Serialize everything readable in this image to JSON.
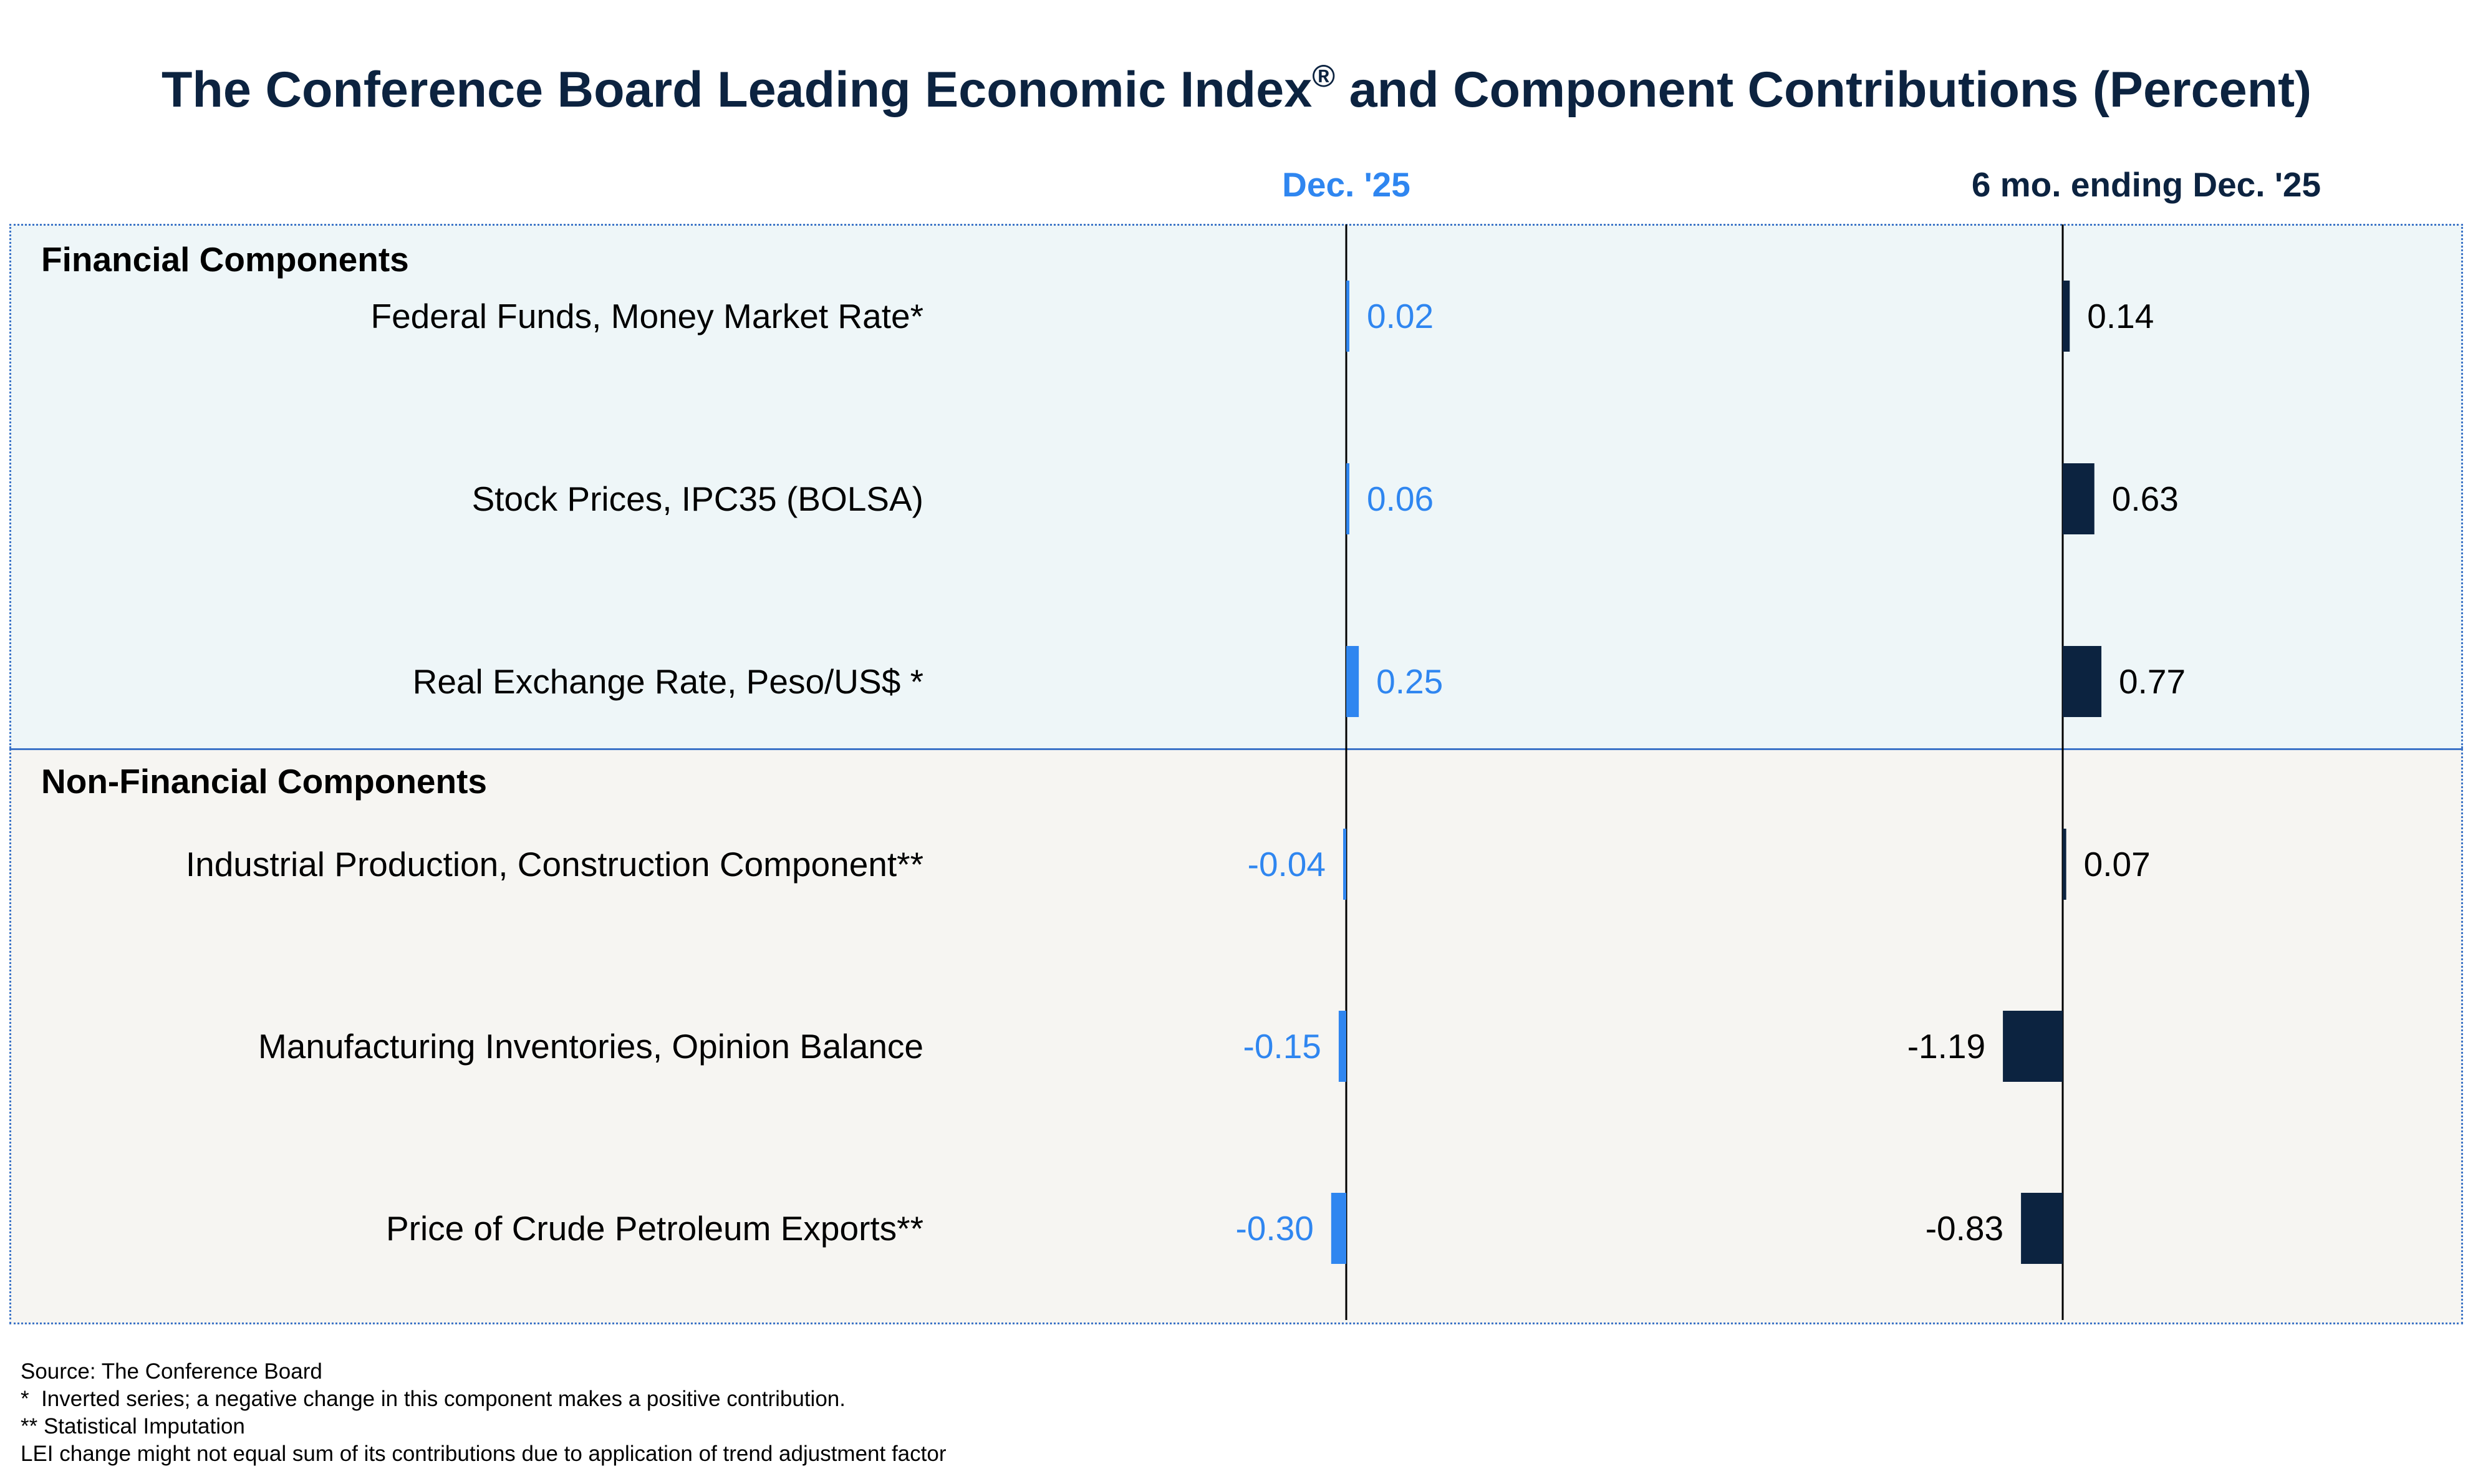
{
  "title": "The Conference Board Leading Economic Index",
  "title_mark": "®",
  "title_suffix": " and Component Contributions (Percent)",
  "colors": {
    "current_bar": "#2f86f0",
    "six_month_bar": "#0c2340",
    "current_label": "#2f86f0",
    "six_month_label": "#000000",
    "financial_bg": "#eef6f8",
    "nonfinancial_bg": "#f6f5f2"
  },
  "chart_data": [
    {
      "type": "bar",
      "orientation": "horizontal",
      "title": "Dec. '25",
      "sections": [
        "Financial Components",
        "Non-Financial Components"
      ],
      "categories": [
        "Federal Funds, Money Market Rate*",
        "Stock Prices, IPC35 (BOLSA)",
        "Real Exchange Rate, Peso/US$ *",
        "Industrial Production, Construction Component**",
        "Manufacturing Inventories, Opinion Balance",
        "Price of Crude Petroleum Exports**"
      ],
      "values": [
        0.02,
        0.06,
        0.25,
        -0.04,
        -0.15,
        -0.3
      ],
      "value_labels": [
        "0.02",
        "0.06",
        "0.25",
        "-0.04",
        "-0.15",
        "-0.30"
      ]
    },
    {
      "type": "bar",
      "orientation": "horizontal",
      "title": "6 mo. ending Dec. '25",
      "sections": [
        "Financial Components",
        "Non-Financial Components"
      ],
      "categories": [
        "Federal Funds, Money Market Rate*",
        "Stock Prices, IPC35 (BOLSA)",
        "Real Exchange Rate, Peso/US$ *",
        "Industrial Production, Construction Component**",
        "Manufacturing Inventories, Opinion Balance",
        "Price of Crude Petroleum Exports**"
      ],
      "values": [
        0.14,
        0.63,
        0.77,
        0.07,
        -1.19,
        -0.83
      ],
      "value_labels": [
        "0.14",
        "0.63",
        "0.77",
        "0.07",
        "-1.19",
        "-0.83"
      ]
    }
  ],
  "footnotes": [
    "Source: The Conference Board",
    "*  Inverted series; a negative change in this component makes a positive contribution.",
    "** Statistical Imputation",
    "LEI change might not equal sum of its contributions due to application of trend adjustment factor"
  ]
}
